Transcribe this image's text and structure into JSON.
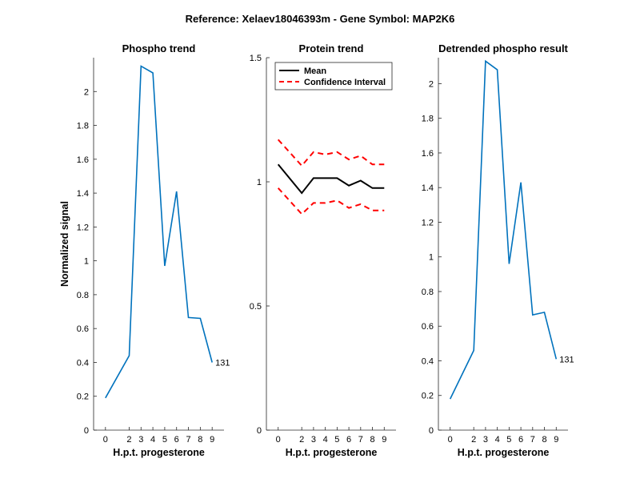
{
  "suptitle": "Reference:  Xelaev18046393m - Gene Symbol:  MAP2K6",
  "chart_data": [
    {
      "type": "line",
      "title": "Phospho trend",
      "xlabel": "H.p.t. progesterone",
      "ylabel": "Normalized signal",
      "x": [
        0,
        2,
        3,
        4,
        5,
        6,
        7,
        8,
        9
      ],
      "xticks": [
        "0",
        "2",
        "3",
        "4",
        "5",
        "6",
        "7",
        "8",
        "9"
      ],
      "yticks": [
        "0",
        "0.2",
        "0.4",
        "0.6",
        "0.8",
        "1",
        "1.2",
        "1.4",
        "1.6",
        "1.8",
        "2"
      ],
      "ylim": [
        0,
        2.2
      ],
      "series": [
        {
          "values": [
            0.19,
            0.44,
            2.15,
            2.11,
            0.97,
            1.41,
            0.665,
            0.66,
            0.4
          ],
          "color": "#0072BD",
          "style": "solid"
        }
      ],
      "annotation": "131",
      "grid": false
    },
    {
      "type": "line",
      "title": "Protein trend",
      "xlabel": "H.p.t. progesterone",
      "ylabel": "",
      "x": [
        0,
        2,
        3,
        4,
        5,
        6,
        7,
        8,
        9
      ],
      "xticks": [
        "0",
        "2",
        "3",
        "4",
        "5",
        "6",
        "7",
        "8",
        "9"
      ],
      "yticks": [
        "0",
        "0.5",
        "1",
        "1.5"
      ],
      "ylim": [
        0,
        1.5
      ],
      "series": [
        {
          "name": "Mean",
          "values": [
            1.07,
            0.955,
            1.015,
            1.015,
            1.015,
            0.985,
            1.005,
            0.975,
            0.975
          ],
          "color": "#000000",
          "style": "solid"
        },
        {
          "name": "Confidence Interval",
          "values": [
            1.17,
            1.065,
            1.12,
            1.11,
            1.12,
            1.09,
            1.105,
            1.07,
            1.07
          ],
          "color": "#FF0000",
          "style": "dashed"
        },
        {
          "name": "",
          "values": [
            0.975,
            0.87,
            0.915,
            0.915,
            0.925,
            0.895,
            0.91,
            0.885,
            0.885
          ],
          "color": "#FF0000",
          "style": "dashed"
        }
      ],
      "legend": {
        "placement": "top-right",
        "entries": [
          "Mean",
          "Confidence Interval"
        ]
      },
      "grid": false
    },
    {
      "type": "line",
      "title": "Detrended phospho result",
      "xlabel": "H.p.t. progesterone",
      "ylabel": "",
      "x": [
        0,
        2,
        3,
        4,
        5,
        6,
        7,
        8,
        9
      ],
      "xticks": [
        "0",
        "2",
        "3",
        "4",
        "5",
        "6",
        "7",
        "8",
        "9"
      ],
      "yticks": [
        "0",
        "0.2",
        "0.4",
        "0.6",
        "0.8",
        "1",
        "1.2",
        "1.4",
        "1.6",
        "1.8",
        "2"
      ],
      "ylim": [
        0,
        2.15
      ],
      "series": [
        {
          "values": [
            0.18,
            0.46,
            2.13,
            2.08,
            0.96,
            1.43,
            0.665,
            0.68,
            0.41
          ],
          "color": "#0072BD",
          "style": "solid"
        }
      ],
      "annotation": "131",
      "grid": false
    }
  ]
}
